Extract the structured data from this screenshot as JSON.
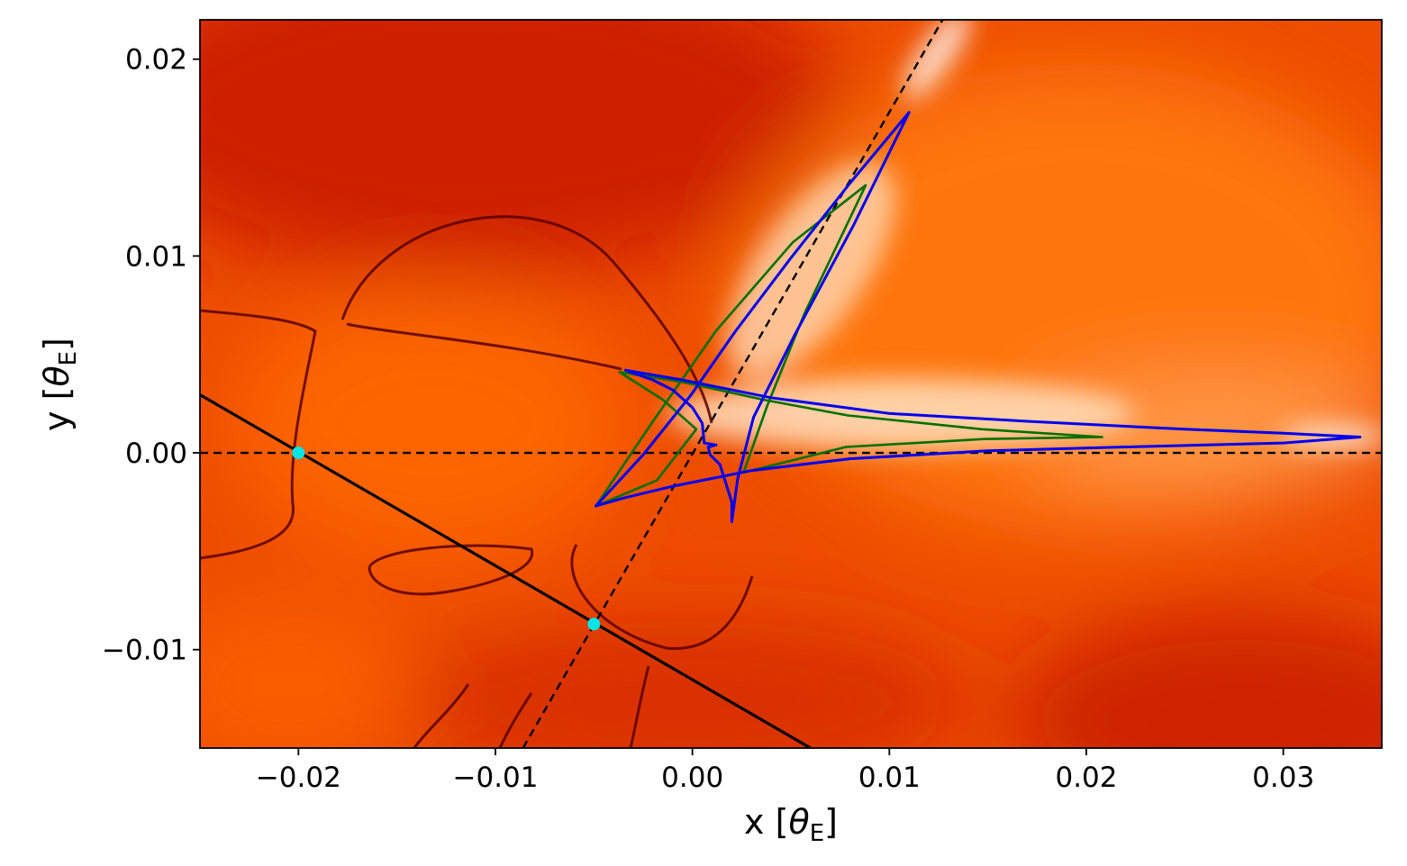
{
  "chart_data": {
    "type": "heatmap",
    "title": "",
    "xlabel": {
      "prefix": "x [",
      "symbol": "θ",
      "sub": "E",
      "suffix": "]"
    },
    "ylabel": {
      "prefix": "y [",
      "symbol": "θ",
      "sub": "E",
      "suffix": "]"
    },
    "xlim": [
      -0.025,
      0.035
    ],
    "ylim": [
      -0.015,
      0.022
    ],
    "grid": false,
    "legend": "none",
    "x_ticks": [
      {
        "value": -0.02,
        "label": "−0.02"
      },
      {
        "value": -0.01,
        "label": "−0.01"
      },
      {
        "value": 0.0,
        "label": "0.00"
      },
      {
        "value": 0.01,
        "label": "0.01"
      },
      {
        "value": 0.02,
        "label": "0.02"
      },
      {
        "value": 0.03,
        "label": "0.03"
      }
    ],
    "y_ticks": [
      {
        "value": 0.02,
        "label": "0.02"
      },
      {
        "value": 0.01,
        "label": "0.01"
      },
      {
        "value": 0.0,
        "label": "0.00"
      },
      {
        "value": -0.01,
        "label": "−0.01"
      }
    ],
    "colormap": {
      "low": "#6e0000",
      "mid_low": "#d42000",
      "mid": "#ff6a00",
      "high": "#ffd9b0",
      "max": "#ffffff"
    },
    "reference_lines": [
      {
        "style": "dashed",
        "color": "#000000",
        "points": [
          [
            -0.025,
            0.0
          ],
          [
            0.035,
            0.0
          ]
        ]
      },
      {
        "style": "dashed",
        "color": "#000000",
        "points": [
          [
            -0.0086,
            -0.015
          ],
          [
            0.0127,
            0.022
          ]
        ]
      },
      {
        "style": "solid",
        "color": "#000000",
        "points": [
          [
            -0.025,
            0.00295
          ],
          [
            0.006,
            -0.015
          ]
        ]
      }
    ],
    "markers": [
      {
        "color": "#00e5e5",
        "x": -0.02,
        "y": 0.0
      },
      {
        "color": "#00e5e5",
        "x": -0.005,
        "y": -0.0087
      }
    ],
    "series": [
      {
        "color": "#007000",
        "points": [
          [
            -0.0049,
            -0.0027
          ],
          [
            -0.002,
            0.0016
          ],
          [
            0.0012,
            0.0062
          ],
          [
            0.0051,
            0.0107
          ],
          [
            0.0088,
            0.0136
          ],
          [
            0.0057,
            0.0071
          ],
          [
            0.0038,
            0.0024
          ],
          [
            0.0026,
            -0.001
          ],
          [
            0.0078,
            0.0003
          ],
          [
            0.0148,
            0.0007
          ],
          [
            0.0208,
            0.0008
          ],
          [
            0.0147,
            0.0012
          ],
          [
            0.0079,
            0.0019
          ],
          [
            0.0036,
            0.0027
          ],
          [
            -0.0005,
            0.0036
          ],
          [
            -0.0037,
            0.0041
          ],
          [
            -0.0015,
            0.0027
          ],
          [
            0.0002,
            0.0012
          ],
          [
            -0.0018,
            -0.0014
          ],
          [
            -0.0049,
            -0.0027
          ]
        ]
      },
      {
        "color": "#0000ee",
        "points": [
          [
            -0.0049,
            -0.0027
          ],
          [
            -0.0025,
            -0.0001
          ],
          [
            -0.0001,
            0.0029
          ],
          [
            0.0022,
            0.0062
          ],
          [
            0.005,
            0.0099
          ],
          [
            0.008,
            0.0137
          ],
          [
            0.011,
            0.0173
          ],
          [
            0.0082,
            0.0116
          ],
          [
            0.0052,
            0.006
          ],
          [
            0.0031,
            0.0018
          ],
          [
            0.0023,
            -0.0013
          ],
          [
            0.002,
            -0.0035
          ],
          [
            0.002,
            -0.0025
          ],
          [
            0.0014,
            -0.0006
          ],
          [
            0.0009,
            -0.0001
          ],
          [
            0.0008,
            0.0003
          ],
          [
            0.0012,
            0.0004
          ],
          [
            0.0006,
            0.0005
          ],
          [
            0.0005,
            0.0015
          ],
          [
            0.0,
            0.0023
          ],
          [
            -0.001,
            0.0032
          ],
          [
            -0.002,
            0.0037
          ],
          [
            -0.0034,
            0.0042
          ],
          [
            -0.0005,
            0.0037
          ],
          [
            0.004,
            0.0028
          ],
          [
            0.01,
            0.002
          ],
          [
            0.017,
            0.0016
          ],
          [
            0.025,
            0.0012
          ],
          [
            0.03,
            0.001
          ],
          [
            0.0339,
            0.0008
          ],
          [
            0.03,
            0.0005
          ],
          [
            0.022,
            0.0003
          ],
          [
            0.015,
            0.0001
          ],
          [
            0.008,
            -0.0003
          ],
          [
            0.003,
            -0.0009
          ],
          [
            -0.001,
            -0.0017
          ],
          [
            -0.0035,
            -0.0023
          ],
          [
            -0.0049,
            -0.0027
          ]
        ]
      }
    ]
  }
}
